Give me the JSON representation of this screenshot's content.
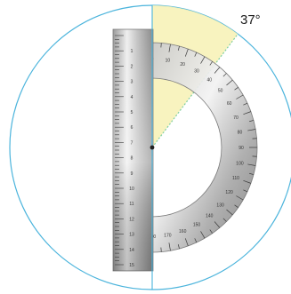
{
  "angle": {
    "label": "37°",
    "degrees": 37
  },
  "colors": {
    "circle": "#4bb4dc",
    "sector_fill": "#f7f1b4",
    "sector_edge": "#7fcfa2",
    "metal_light": "#e8e8e8",
    "metal_dark": "#8d8d8d",
    "center_dot": "#222222"
  },
  "labels": {
    "ruler_numbers": [
      "1",
      "2",
      "3",
      "4",
      "5",
      "6",
      "7",
      "8",
      "9",
      "10",
      "11",
      "12",
      "13",
      "14",
      "15"
    ],
    "protractor_numbers": [
      "0",
      "10",
      "20",
      "30",
      "40",
      "50",
      "60",
      "70",
      "80",
      "90",
      "100",
      "110",
      "120",
      "130",
      "140",
      "150",
      "160",
      "170",
      "180"
    ]
  }
}
